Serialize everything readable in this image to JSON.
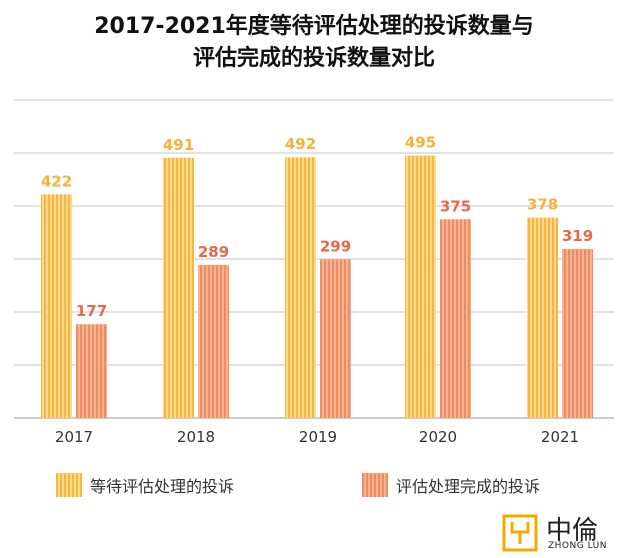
{
  "title_line1": "2017-2021年度等待评估处理的投诉数量与",
  "title_line2": "评估完成的投诉数量对比",
  "logo": {
    "text": "中倫",
    "sub": "ZHONG LUN"
  },
  "colors": {
    "pending": "#F8C055",
    "completed": "#F09A6E",
    "pending_label": "#F4B23A",
    "completed_label": "#E8684A"
  },
  "chart_data": {
    "type": "bar",
    "categories": [
      "2017",
      "2018",
      "2019",
      "2020",
      "2021"
    ],
    "series": [
      {
        "name": "等待评估处理的投诉",
        "values": [
          422,
          491,
          492,
          495,
          378
        ]
      },
      {
        "name": "评估处理完成的投诉",
        "values": [
          177,
          289,
          299,
          375,
          319
        ]
      }
    ],
    "ylim": [
      0,
      500
    ],
    "grid": true,
    "legend": "bottom"
  }
}
